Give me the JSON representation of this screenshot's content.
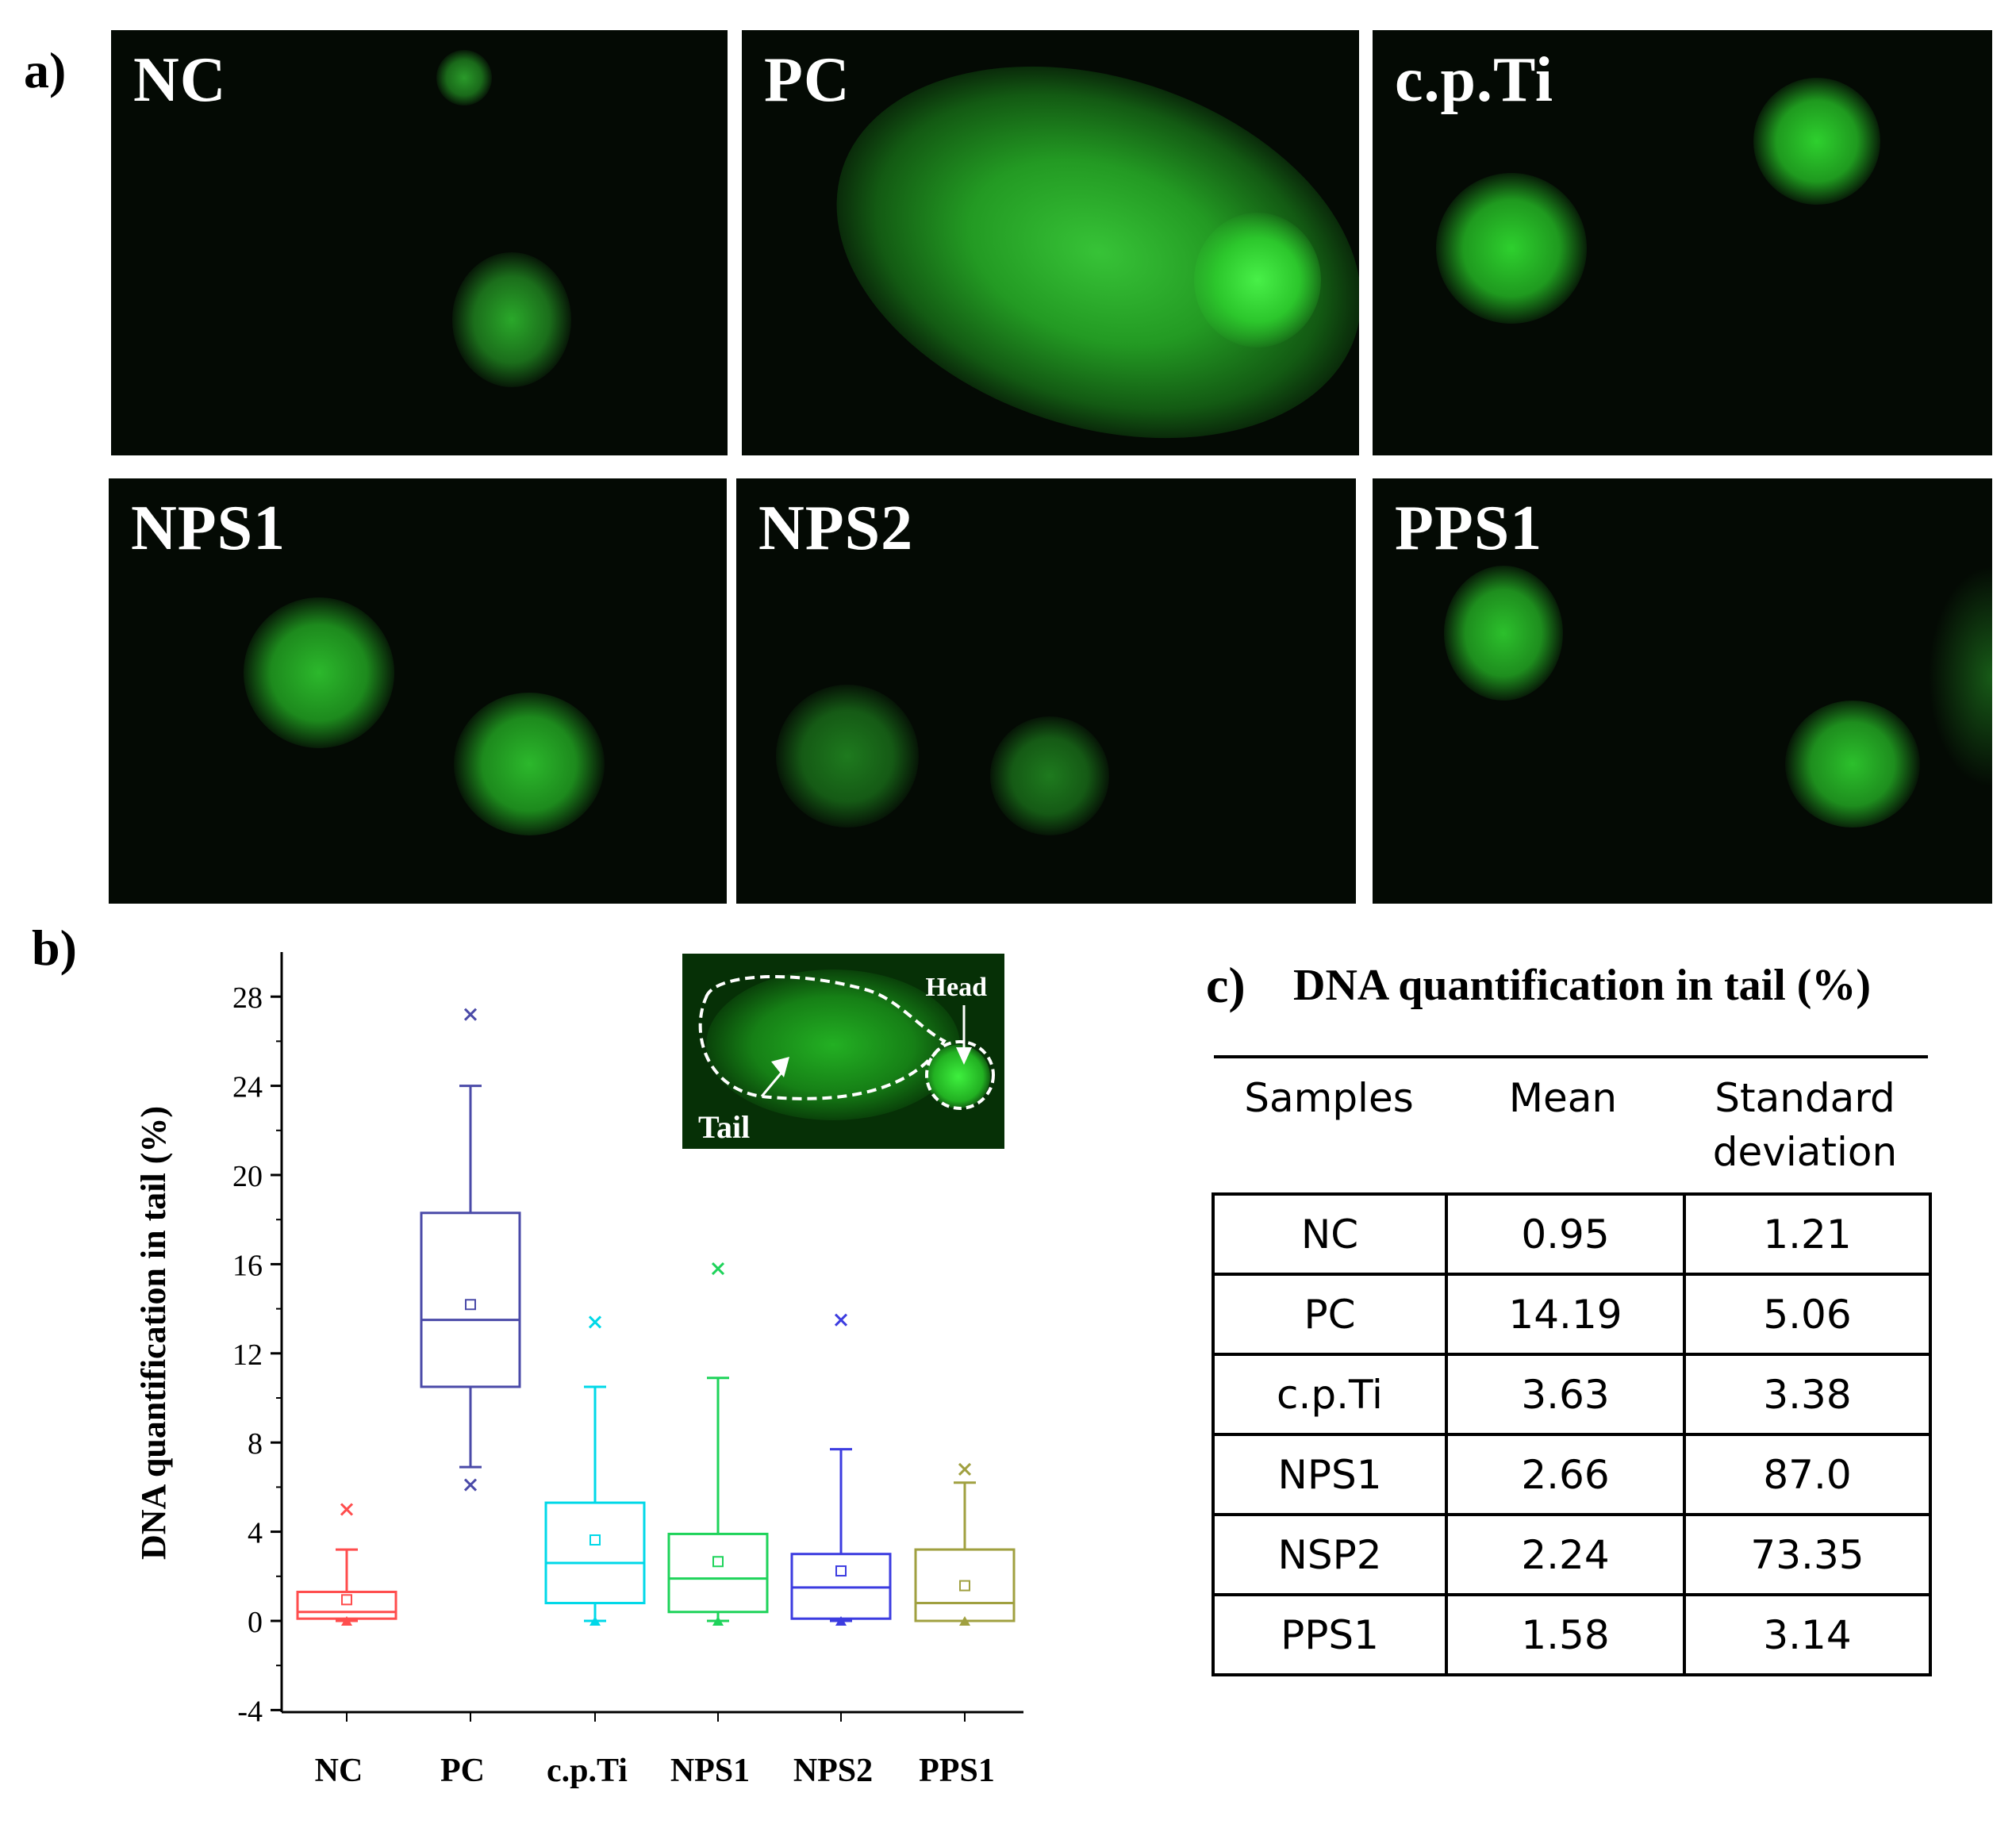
{
  "panels": {
    "a": "a)",
    "b": "b)",
    "c": "c)"
  },
  "micrographs": [
    {
      "label": "NC"
    },
    {
      "label": "PC"
    },
    {
      "label": "c.p.Ti"
    },
    {
      "label": "NPS1"
    },
    {
      "label": "NPS2"
    },
    {
      "label": "PPS1"
    }
  ],
  "inset": {
    "head": "Head",
    "tail": "Tail"
  },
  "colors": {
    "NC": "#ff4d4d",
    "PC": "#4a4aa8",
    "c.p.Ti": "#00d8e8",
    "NPS1": "#1ed35a",
    "NPS2": "#3c3ce0",
    "PPS1": "#a0a040",
    "cell": "#22c422",
    "background": "#040a04"
  },
  "chart_data": {
    "type": "box",
    "ylabel": "DNA quantification in tail (%)",
    "ylim": [
      -4,
      30
    ],
    "yticks": [
      -4,
      0,
      4,
      8,
      12,
      16,
      20,
      24,
      28
    ],
    "categories": [
      "NC",
      "PC",
      "c.p.Ti",
      "NPS1",
      "NPS2",
      "PPS1"
    ],
    "boxes": [
      {
        "name": "NC",
        "whisker_low": 0,
        "q1": 0.1,
        "median": 0.4,
        "q3": 1.3,
        "whisker_high": 3.2,
        "mean": 0.95,
        "max": 5.0,
        "min": 0
      },
      {
        "name": "PC",
        "whisker_low": 6.9,
        "q1": 10.5,
        "median": 13.5,
        "q3": 18.3,
        "whisker_high": 24.0,
        "mean": 14.19,
        "max": 27.2,
        "min": 6.1
      },
      {
        "name": "c.p.Ti",
        "whisker_low": 0,
        "q1": 0.8,
        "median": 2.6,
        "q3": 5.3,
        "whisker_high": 10.5,
        "mean": 3.63,
        "max": 13.4,
        "min": 0
      },
      {
        "name": "NPS1",
        "whisker_low": 0,
        "q1": 0.4,
        "median": 1.9,
        "q3": 3.9,
        "whisker_high": 10.9,
        "mean": 2.66,
        "max": 15.8,
        "min": 0
      },
      {
        "name": "NPS2",
        "whisker_low": 0,
        "q1": 0.1,
        "median": 1.5,
        "q3": 3.0,
        "whisker_high": 7.7,
        "mean": 2.24,
        "max": 13.5,
        "min": 0
      },
      {
        "name": "PPS1",
        "whisker_low": 0,
        "q1": 0.0,
        "median": 0.8,
        "q3": 3.2,
        "whisker_high": 6.2,
        "mean": 1.58,
        "max": 6.8,
        "min": 0
      }
    ]
  },
  "table": {
    "title": "DNA quantification in tail (%)",
    "headers": [
      "Samples",
      "Mean",
      "Standard deviation"
    ],
    "rows": [
      [
        "NC",
        "0.95",
        "1.21"
      ],
      [
        "PC",
        "14.19",
        "5.06"
      ],
      [
        "c.p.Ti",
        "3.63",
        "3.38"
      ],
      [
        "NPS1",
        "2.66",
        "87.0"
      ],
      [
        "NSP2",
        "2.24",
        "73.35"
      ],
      [
        "PPS1",
        "1.58",
        "3.14"
      ]
    ]
  }
}
